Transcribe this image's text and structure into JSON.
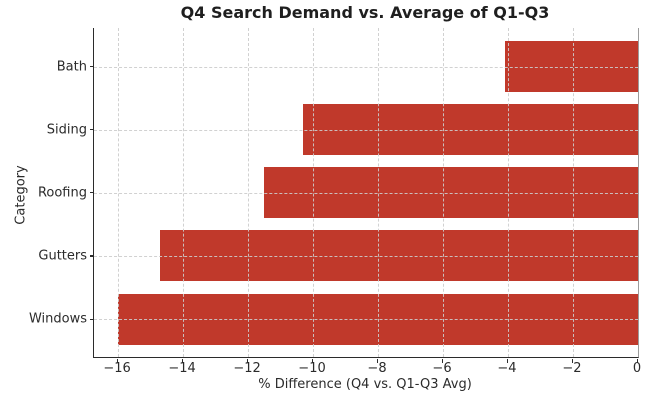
{
  "chart_data": {
    "type": "bar",
    "orientation": "horizontal",
    "title": "Q4 Search Demand vs. Average of Q1-Q3",
    "xlabel": "% Difference (Q4 vs. Q1-Q3 Avg)",
    "ylabel": "Category",
    "categories": [
      "Bath",
      "Siding",
      "Roofing",
      "Gutters",
      "Windows"
    ],
    "values": [
      -4.1,
      -10.3,
      -11.5,
      -14.7,
      -16.0
    ],
    "x_ticks": [
      -16,
      -14,
      -12,
      -10,
      -8,
      -6,
      -4,
      -2,
      0
    ],
    "x_tick_labels": [
      "−16",
      "−14",
      "−12",
      "−10",
      "−8",
      "−6",
      "−4",
      "−2",
      "0"
    ],
    "xlim": [
      -16.74,
      0
    ],
    "grid": true,
    "grid_style": "dashed",
    "legend": false,
    "bar_color": "#c0392b",
    "grid_color": "#cccccc",
    "spine_color": "#2b2b2b",
    "right_spine_color": "#9c9c9c",
    "background_color": "#ffffff"
  }
}
